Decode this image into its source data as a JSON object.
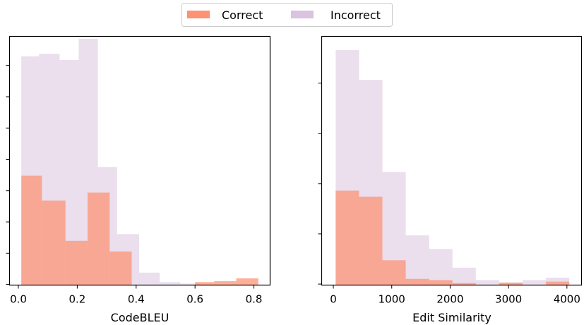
{
  "legend": {
    "position": "top-center",
    "entries": [
      {
        "label": "Correct",
        "color": "#fc9272"
      },
      {
        "label": "Incorrect",
        "color": "#dac3de"
      }
    ]
  },
  "chart_data": [
    {
      "type": "histogram",
      "xlabel": "CodeBLEU",
      "ylabel": "",
      "xlim": [
        -0.03,
        0.855
      ],
      "ylim": [
        0,
        1.0
      ],
      "xticks": [
        0.0,
        0.2,
        0.4,
        0.6,
        0.8
      ],
      "xtick_labels": [
        "0.0",
        "0.2",
        "0.4",
        "0.6",
        "0.8"
      ],
      "ytick_labels_visible": false,
      "grid": false,
      "series": [
        {
          "name": "Incorrect",
          "color": "#dac3de",
          "bins": [
            {
              "x0": 0.01,
              "x1": 0.07,
              "value": 0.92
            },
            {
              "x0": 0.07,
              "x1": 0.14,
              "value": 0.93
            },
            {
              "x0": 0.14,
              "x1": 0.205,
              "value": 0.905
            },
            {
              "x0": 0.205,
              "x1": 0.27,
              "value": 0.99
            },
            {
              "x0": 0.27,
              "x1": 0.335,
              "value": 0.475
            },
            {
              "x0": 0.335,
              "x1": 0.41,
              "value": 0.205
            },
            {
              "x0": 0.41,
              "x1": 0.48,
              "value": 0.05
            },
            {
              "x0": 0.48,
              "x1": 0.55,
              "value": 0.012
            },
            {
              "x0": 0.55,
              "x1": 0.62,
              "value": 0.006
            }
          ]
        },
        {
          "name": "Correct",
          "color": "#fc9272",
          "bins": [
            {
              "x0": 0.01,
              "x1": 0.08,
              "value": 0.44
            },
            {
              "x0": 0.08,
              "x1": 0.16,
              "value": 0.34
            },
            {
              "x0": 0.16,
              "x1": 0.235,
              "value": 0.178
            },
            {
              "x0": 0.235,
              "x1": 0.31,
              "value": 0.372
            },
            {
              "x0": 0.31,
              "x1": 0.385,
              "value": 0.135
            },
            {
              "x0": 0.385,
              "x1": 0.465,
              "value": 0.0
            },
            {
              "x0": 0.465,
              "x1": 0.54,
              "value": 0.0
            },
            {
              "x0": 0.54,
              "x1": 0.6,
              "value": 0.0
            },
            {
              "x0": 0.6,
              "x1": 0.665,
              "value": 0.012
            },
            {
              "x0": 0.665,
              "x1": 0.74,
              "value": 0.016
            },
            {
              "x0": 0.74,
              "x1": 0.815,
              "value": 0.027
            }
          ]
        }
      ]
    },
    {
      "type": "histogram",
      "xlabel": "Edit Similarity",
      "ylabel": "",
      "xlim": [
        -200,
        4250
      ],
      "ylim": [
        0,
        1.0
      ],
      "xticks": [
        0,
        1000,
        2000,
        3000,
        4000
      ],
      "xtick_labels": [
        "0",
        "1000",
        "2000",
        "3000",
        "4000"
      ],
      "ytick_labels_visible": false,
      "grid": false,
      "series": [
        {
          "name": "Incorrect",
          "color": "#dac3de",
          "bins": [
            {
              "x0": 40,
              "x1": 440,
              "value": 0.945
            },
            {
              "x0": 440,
              "x1": 840,
              "value": 0.825
            },
            {
              "x0": 840,
              "x1": 1240,
              "value": 0.455
            },
            {
              "x0": 1240,
              "x1": 1640,
              "value": 0.2
            },
            {
              "x0": 1640,
              "x1": 2040,
              "value": 0.145
            },
            {
              "x0": 2040,
              "x1": 2440,
              "value": 0.07
            },
            {
              "x0": 2440,
              "x1": 2840,
              "value": 0.02
            },
            {
              "x0": 2840,
              "x1": 3240,
              "value": 0.01
            },
            {
              "x0": 3240,
              "x1": 3640,
              "value": 0.02
            },
            {
              "x0": 3640,
              "x1": 4040,
              "value": 0.03
            }
          ]
        },
        {
          "name": "Correct",
          "color": "#fc9272",
          "bins": [
            {
              "x0": 40,
              "x1": 440,
              "value": 0.38
            },
            {
              "x0": 440,
              "x1": 840,
              "value": 0.355
            },
            {
              "x0": 840,
              "x1": 1240,
              "value": 0.1
            },
            {
              "x0": 1240,
              "x1": 1640,
              "value": 0.025
            },
            {
              "x0": 1640,
              "x1": 2040,
              "value": 0.02
            },
            {
              "x0": 2040,
              "x1": 2440,
              "value": 0.008
            },
            {
              "x0": 2440,
              "x1": 2840,
              "value": 0.0
            },
            {
              "x0": 2840,
              "x1": 3240,
              "value": 0.01
            },
            {
              "x0": 3240,
              "x1": 3640,
              "value": 0.0
            },
            {
              "x0": 3640,
              "x1": 4040,
              "value": 0.014
            }
          ]
        }
      ]
    }
  ]
}
